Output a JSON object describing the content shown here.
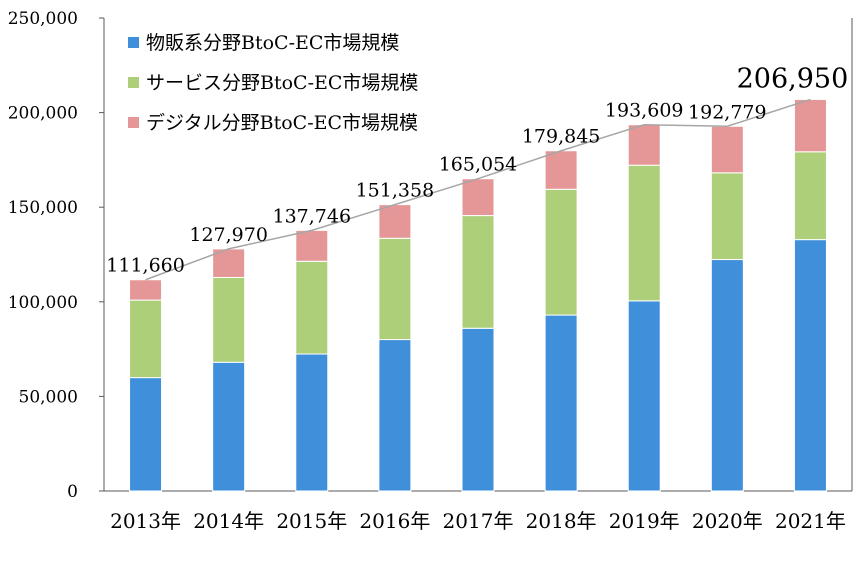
{
  "chart_data": {
    "type": "bar",
    "stacked": true,
    "categories": [
      "2013年",
      "2014年",
      "2015年",
      "2016年",
      "2017年",
      "2018年",
      "2019年",
      "2020年",
      "2021年"
    ],
    "series": [
      {
        "name": "物販系分野BtoC-EC市場規模",
        "color": "#3f8fda",
        "values": [
          59931,
          68043,
          72398,
          80043,
          86008,
          92992,
          100515,
          122333,
          132865
        ]
      },
      {
        "name": "サービス分野BtoC-EC市場規模",
        "color": "#aecf7a",
        "values": [
          40971,
          44816,
          49014,
          53532,
          59568,
          66471,
          71672,
          45832,
          46424
        ]
      },
      {
        "name": "デジタル分野BtoC-EC市場規模",
        "color": "#e59797",
        "values": [
          10758,
          15111,
          16334,
          17782,
          19478,
          20382,
          21422,
          24614,
          27661
        ]
      }
    ],
    "totals": [
      111660,
      127970,
      137746,
      151358,
      165054,
      179845,
      193609,
      192779,
      206950
    ],
    "total_labels": [
      "111,660",
      "127,970",
      "137,746",
      "151,358",
      "165,054",
      "179,845",
      "193,609",
      "192,779",
      "206,950"
    ],
    "y_ticks": [
      "0",
      "50,000",
      "100,000",
      "150,000",
      "200,000",
      "250,000"
    ],
    "ylim": [
      0,
      250000
    ],
    "y_step": 50000,
    "grid": false,
    "legend_position": "top-left",
    "total_line_color": "#a6a6a6",
    "title": "",
    "xlabel": "",
    "ylabel": ""
  }
}
